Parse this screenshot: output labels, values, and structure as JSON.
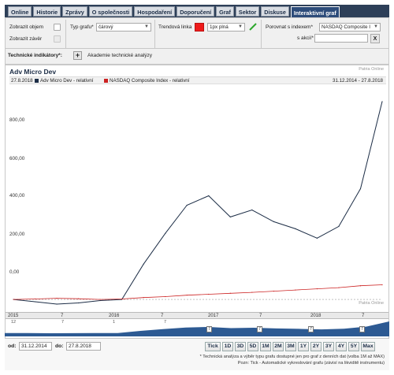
{
  "tabs": [
    {
      "label": "Online",
      "active": false
    },
    {
      "label": "Historie",
      "active": false
    },
    {
      "label": "Zprávy",
      "active": false
    },
    {
      "label": "O společnosti",
      "active": false
    },
    {
      "label": "Hospodaření",
      "active": false
    },
    {
      "label": "Doporučení",
      "active": false
    },
    {
      "label": "Graf",
      "active": false
    },
    {
      "label": "Sektor",
      "active": false
    },
    {
      "label": "Diskuse",
      "active": false
    },
    {
      "label": "Interaktivní graf",
      "active": true
    }
  ],
  "settings": {
    "show_volume_label": "Zobrazit objem",
    "show_close_label": "Zobrazit závěr",
    "chart_type_label": "Typ grafu*",
    "chart_type_value": "čárový",
    "trend_line_label": "Trendová linka",
    "trend_color": "#ee1b1b",
    "trend_style_value": "1px plná",
    "compare_label": "Porovnat s indexem*",
    "compare_value": "NASDAQ Composite I",
    "stock_label": "s akcií*",
    "stock_value": "",
    "clear_label": "X",
    "indicators_label": "Technické indikátory*:",
    "add_label": "+",
    "academy_label": "Akademie technické analýzy"
  },
  "chart": {
    "title": "Adv Micro Dev",
    "brand": "Patria Online",
    "date_range_start": "27.8.2018",
    "date_range_text": "31.12.2014 - 27.8.2018",
    "x_tick_labels": [
      "2015",
      "7",
      "2016",
      "7",
      "2017",
      "7",
      "2018",
      "7"
    ],
    "nav_tick_labels": [
      "12",
      "7",
      "1",
      "7"
    ]
  },
  "chart_data": {
    "type": "line",
    "x": [
      "2015-01",
      "2015-04",
      "2015-07",
      "2015-10",
      "2016-01",
      "2016-04",
      "2016-07",
      "2016-10",
      "2017-01",
      "2017-02",
      "2017-04",
      "2017-07",
      "2017-09",
      "2017-12",
      "2018-03",
      "2018-05",
      "2018-07",
      "2018-08"
    ],
    "series": [
      {
        "name": "Adv Micro Dev - relativní",
        "color": "#1c2d46",
        "values": [
          0,
          -10,
          -20,
          -15,
          -5,
          0,
          150,
          280,
          400,
          440,
          350,
          380,
          330,
          300,
          260,
          310,
          470,
          840
        ]
      },
      {
        "name": "NASDAQ Composite Index - relativní",
        "color": "#cc2222",
        "values": [
          0,
          2,
          5,
          3,
          0,
          2,
          8,
          12,
          18,
          22,
          26,
          30,
          35,
          40,
          45,
          50,
          58,
          62
        ]
      }
    ],
    "y_ticks": [
      "800,00",
      "600,00",
      "400,00",
      "200,00",
      "0,00"
    ],
    "ylim": [
      -50,
      900
    ],
    "grid": false
  },
  "range_buttons": [
    "Tick",
    "1D",
    "3D",
    "5D",
    "1M",
    "2M",
    "3M",
    "1Y",
    "2Y",
    "3Y",
    "4Y",
    "5Y",
    "Max"
  ],
  "dates": {
    "from_label": "od:",
    "from_value": "31.12.2014",
    "to_label": "do:",
    "to_value": "27.8.2018"
  },
  "notes": {
    "line1": "* Technická analýza a výběr typu grafu dostupné jen pro graf z denních dat (volba 1M až MAX)",
    "line2": "Pozn: Tick - Automatické vykreslování grafu (závisí na likviditě instrumentu)"
  }
}
